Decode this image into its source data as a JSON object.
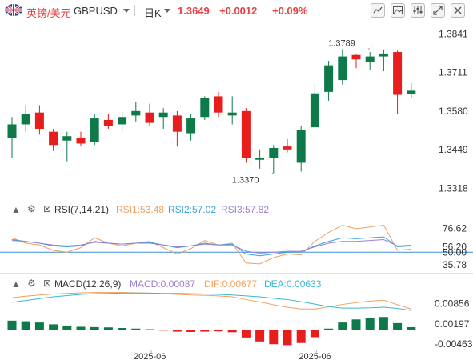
{
  "header": {
    "symbol_cn": "英镑/美元",
    "symbol_code": "GBPUSD",
    "timeframe": "日K",
    "price": "1.3649",
    "change": "+0.0012",
    "change_pct": "+0.09%"
  },
  "toolbar_icons": [
    "chart-type-icon",
    "picture-icon",
    "settings-icon",
    "expand-icon",
    "close-icon"
  ],
  "rsi": {
    "title": "RSI(7,14,21)",
    "rsi1": "RSI1:53.48",
    "rsi2": "RSI2:57.02",
    "rsi3": "RSI3:57.82"
  },
  "macd": {
    "title": "MACD(12,26,9)",
    "macd": "MACD:0.00087",
    "dif": "DIF:0.00677",
    "dea": "DEA:0.00633"
  },
  "colors": {
    "up": "#0e7a49",
    "down": "#e81d1d",
    "header_red": "#e84141",
    "rsi1": "#f0a060",
    "rsi2": "#3aa3d9",
    "rsi3": "#9b7fd4",
    "dif": "#f0a060",
    "dea": "#3ab8d0"
  },
  "chart_data": [
    {
      "type": "candlestick",
      "name": "price",
      "y_ticks": [
        "1.3841",
        "1.3711",
        "1.3580",
        "1.3449",
        "1.3318"
      ],
      "ylim": [
        1.3295,
        1.3875
      ],
      "annotations": [
        {
          "label": "1.3789",
          "value": 1.3789,
          "index": 26
        },
        {
          "label": "1.3370",
          "value": 1.337,
          "index": 19
        }
      ],
      "candles": [
        {
          "o": 1.349,
          "h": 1.356,
          "l": 1.342,
          "c": 1.3535
        },
        {
          "o": 1.3535,
          "h": 1.36,
          "l": 1.351,
          "c": 1.357
        },
        {
          "o": 1.3575,
          "h": 1.36,
          "l": 1.35,
          "c": 1.352
        },
        {
          "o": 1.351,
          "h": 1.352,
          "l": 1.3445,
          "c": 1.3465
        },
        {
          "o": 1.348,
          "h": 1.351,
          "l": 1.341,
          "c": 1.3495
        },
        {
          "o": 1.349,
          "h": 1.351,
          "l": 1.346,
          "c": 1.347
        },
        {
          "o": 1.3475,
          "h": 1.357,
          "l": 1.3465,
          "c": 1.3555
        },
        {
          "o": 1.355,
          "h": 1.357,
          "l": 1.352,
          "c": 1.353
        },
        {
          "o": 1.3535,
          "h": 1.358,
          "l": 1.351,
          "c": 1.356
        },
        {
          "o": 1.3565,
          "h": 1.361,
          "l": 1.3545,
          "c": 1.358
        },
        {
          "o": 1.3575,
          "h": 1.3605,
          "l": 1.353,
          "c": 1.354
        },
        {
          "o": 1.356,
          "h": 1.359,
          "l": 1.352,
          "c": 1.3575
        },
        {
          "o": 1.3565,
          "h": 1.358,
          "l": 1.346,
          "c": 1.351
        },
        {
          "o": 1.3505,
          "h": 1.357,
          "l": 1.348,
          "c": 1.3555
        },
        {
          "o": 1.356,
          "h": 1.363,
          "l": 1.355,
          "c": 1.3625
        },
        {
          "o": 1.363,
          "h": 1.3645,
          "l": 1.356,
          "c": 1.3575
        },
        {
          "o": 1.3565,
          "h": 1.363,
          "l": 1.3535,
          "c": 1.3575
        },
        {
          "o": 1.358,
          "h": 1.359,
          "l": 1.3405,
          "c": 1.342
        },
        {
          "o": 1.3415,
          "h": 1.345,
          "l": 1.3385,
          "c": 1.342
        },
        {
          "o": 1.342,
          "h": 1.3465,
          "l": 1.337,
          "c": 1.3455
        },
        {
          "o": 1.346,
          "h": 1.3485,
          "l": 1.344,
          "c": 1.345
        },
        {
          "o": 1.3405,
          "h": 1.353,
          "l": 1.3375,
          "c": 1.3515
        },
        {
          "o": 1.3525,
          "h": 1.367,
          "l": 1.352,
          "c": 1.364
        },
        {
          "o": 1.3645,
          "h": 1.375,
          "l": 1.3615,
          "c": 1.3735
        },
        {
          "o": 1.3685,
          "h": 1.379,
          "l": 1.367,
          "c": 1.3765
        },
        {
          "o": 1.377,
          "h": 1.3775,
          "l": 1.3725,
          "c": 1.3755
        },
        {
          "o": 1.3745,
          "h": 1.378,
          "l": 1.372,
          "c": 1.3765
        },
        {
          "o": 1.3765,
          "h": 1.3789,
          "l": 1.3715,
          "c": 1.3775
        },
        {
          "o": 1.378,
          "h": 1.3785,
          "l": 1.357,
          "c": 1.3635
        },
        {
          "o": 1.3637,
          "h": 1.3675,
          "l": 1.3625,
          "c": 1.3649
        }
      ]
    },
    {
      "type": "line",
      "name": "rsi",
      "y_ticks": [
        "76.62",
        "56.20",
        "50.00",
        "35.78"
      ],
      "ylim": [
        28,
        92
      ],
      "level": 50,
      "series": [
        {
          "name": "RSI1",
          "values": [
            66,
            60,
            58,
            52,
            50,
            55,
            66,
            60,
            57,
            60,
            62,
            55,
            48,
            54,
            63,
            58,
            60,
            38,
            37,
            44,
            48,
            47,
            62,
            72,
            80,
            76,
            78,
            80,
            52,
            53.48
          ]
        },
        {
          "name": "RSI2",
          "values": [
            64,
            62,
            60,
            57,
            56,
            57,
            62,
            60,
            59,
            60,
            61,
            58,
            55,
            57,
            60,
            58,
            59,
            48,
            46,
            48,
            50,
            50,
            57,
            62,
            66,
            65,
            66,
            67,
            56,
            57.02
          ]
        },
        {
          "name": "RSI3",
          "values": [
            63,
            62,
            60,
            58,
            57,
            58,
            61,
            60,
            59,
            60,
            60,
            58,
            56,
            57,
            59,
            58,
            58,
            51,
            49,
            50,
            51,
            51,
            56,
            60,
            62,
            62,
            63,
            64,
            57,
            57.82
          ]
        }
      ]
    },
    {
      "type": "bar+line",
      "name": "macd",
      "y_ticks": [
        "0.00856",
        "0.00197",
        "-0.00463"
      ],
      "ylim": [
        -0.0062,
        0.0142
      ],
      "histogram": [
        0.003,
        0.0028,
        0.0024,
        0.0018,
        0.0014,
        0.001,
        0.0009,
        0.0008,
        0.0006,
        0.0004,
        0.0002,
        -0.0002,
        -0.0006,
        -0.0007,
        -0.0006,
        -0.0005,
        -0.0008,
        -0.0025,
        -0.0038,
        -0.0047,
        -0.005,
        -0.0043,
        -0.0024,
        0.0004,
        0.0024,
        0.0034,
        0.004,
        0.0042,
        0.0022,
        0.00087
      ],
      "series": [
        {
          "name": "DIF",
          "values": [
            0.0105,
            0.011,
            0.0114,
            0.0117,
            0.0119,
            0.0121,
            0.0122,
            0.0122,
            0.0122,
            0.0121,
            0.012,
            0.0118,
            0.0116,
            0.0114,
            0.0113,
            0.0111,
            0.0108,
            0.0099,
            0.0091,
            0.0082,
            0.0074,
            0.0068,
            0.0068,
            0.0075,
            0.0083,
            0.0089,
            0.0094,
            0.0097,
            0.0082,
            0.00677
          ]
        },
        {
          "name": "DEA",
          "values": [
            0.009,
            0.0096,
            0.0102,
            0.0108,
            0.0112,
            0.0116,
            0.0118,
            0.0119,
            0.012,
            0.012,
            0.012,
            0.0119,
            0.0119,
            0.0118,
            0.0117,
            0.0116,
            0.0114,
            0.0111,
            0.0108,
            0.0103,
            0.0099,
            0.0092,
            0.0084,
            0.0076,
            0.0071,
            0.0071,
            0.0072,
            0.0074,
            0.007,
            0.00633
          ]
        }
      ]
    }
  ],
  "x_ticks": [
    {
      "label": "2025-06",
      "index": 10
    },
    {
      "label": "2025-06",
      "index": 22
    }
  ]
}
